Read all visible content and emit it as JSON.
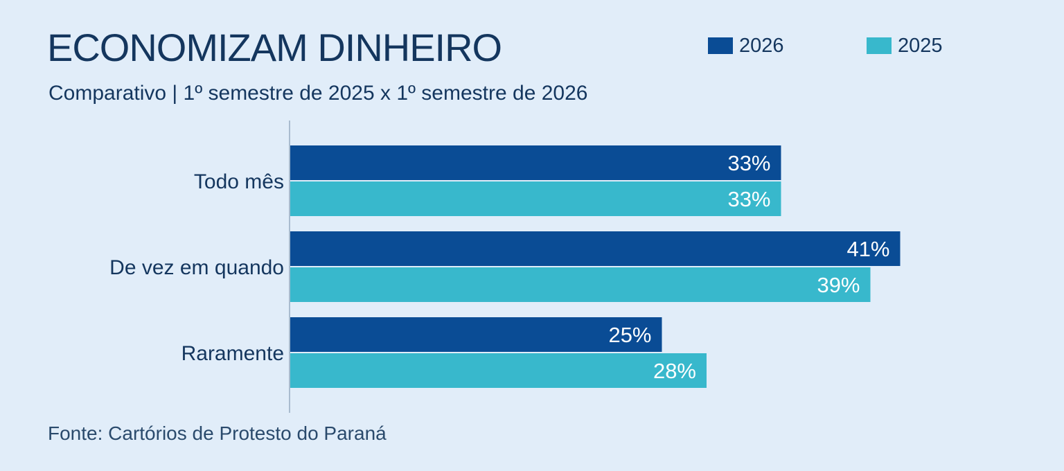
{
  "chart_data": {
    "type": "bar",
    "orientation": "horizontal",
    "title": "ECONOMIZAM DINHEIRO",
    "subtitle": "Comparativo  |  1º semestre de 2025 x 1º semestre de 2026",
    "categories": [
      "Todo mês",
      "De vez em quando",
      "Raramente"
    ],
    "series": [
      {
        "name": "2026",
        "values": [
          33,
          41,
          25
        ],
        "labels": [
          "33%",
          "41%",
          "25%"
        ],
        "color": "#0a4c95"
      },
      {
        "name": "2025",
        "values": [
          33,
          39,
          28
        ],
        "labels": [
          "33%",
          "39%",
          "28%"
        ],
        "color": "#38b8cc"
      }
    ],
    "unit": "%",
    "xlim": [
      0,
      50
    ],
    "grid": false,
    "legend_position": "top-right",
    "source": "Fonte: Cartórios de Protesto do Paraná"
  },
  "colors": {
    "background": "#e1edf9",
    "text": "#14365e",
    "axis": "#a9bccf",
    "bar_label": "#ffffff"
  }
}
